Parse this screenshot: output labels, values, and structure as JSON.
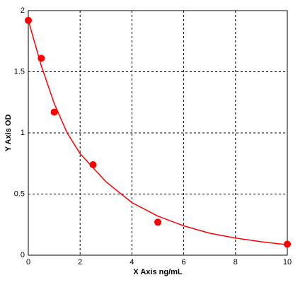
{
  "chart_data": {
    "type": "scatter",
    "x_label": "X Axis ng/mL",
    "y_label": "Y Axis OD",
    "series": [
      {
        "color": "#ff0000",
        "mode": "markers",
        "x": [
          0,
          0.5,
          1,
          2.5,
          5,
          10
        ],
        "values": [
          1.92,
          1.61,
          1.17,
          0.74,
          0.27,
          0.09
        ]
      },
      {
        "color": "#ff0000",
        "mode": "line",
        "x": [
          0,
          0.5,
          1,
          1.5,
          2,
          3,
          4,
          5,
          6,
          7,
          8,
          9,
          10
        ],
        "values": [
          1.92,
          1.55,
          1.24,
          1.0,
          0.83,
          0.6,
          0.43,
          0.32,
          0.24,
          0.18,
          0.14,
          0.11,
          0.085
        ]
      }
    ],
    "xlim": [
      0,
      10
    ],
    "xticks": [
      0,
      2,
      4,
      6,
      8,
      10
    ],
    "ylim": [
      0,
      2
    ],
    "yticks": [
      0,
      0.5,
      1,
      1.5,
      2
    ],
    "grid": true
  }
}
